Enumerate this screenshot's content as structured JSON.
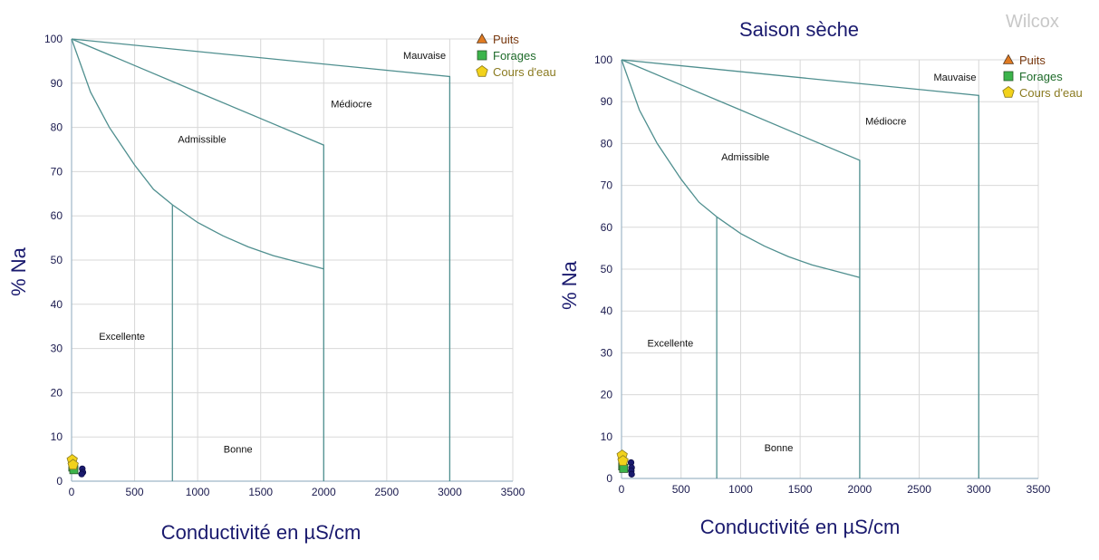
{
  "watermark": "Wilcox",
  "colors": {
    "grid": "#d8d8d8",
    "boundary": "#4f8f8f",
    "axis_text": "#1a1a4e",
    "axis_title": "#1a1a6e",
    "puits": "#e07b22",
    "forages": "#3cb44b",
    "cours": "#f2d21b",
    "legend_puits_text": "#7a3a10",
    "legend_forages_text": "#1e6b2a",
    "legend_cours_text": "#8a7a20",
    "sample_blue": "#1a1a6e"
  },
  "legend": [
    {
      "label": "Puits",
      "icon": "triangle-icon",
      "color_key": "puits"
    },
    {
      "label": "Forages",
      "icon": "square-icon",
      "color_key": "forages"
    },
    {
      "label": "Cours d'eau",
      "icon": "pentagon-icon",
      "color_key": "cours"
    }
  ],
  "chart_data": [
    {
      "type": "scatter",
      "title": "",
      "xlabel": "Conductivité en µS/cm",
      "ylabel": "% Na",
      "xlim": [
        0,
        3500
      ],
      "ylim": [
        0,
        100
      ],
      "x_ticks": [
        0,
        500,
        1000,
        1500,
        2000,
        2500,
        3000,
        3500
      ],
      "y_ticks": [
        0,
        10,
        20,
        30,
        40,
        50,
        60,
        70,
        80,
        90,
        100
      ],
      "grid": true,
      "legend_position": "top-right",
      "zones": [
        {
          "label": "Excellente",
          "x": 400,
          "y": 32
        },
        {
          "label": "Bonne",
          "x": 1320,
          "y": 6.5
        },
        {
          "label": "Admissible",
          "x": 1035,
          "y": 76.5
        },
        {
          "label": "Médiocre",
          "x": 2220,
          "y": 84.5
        },
        {
          "label": "Mauvaise",
          "x": 2800,
          "y": 95.5
        }
      ],
      "series": [
        {
          "name": "Puits",
          "points": [
            [
              85,
              2.8
            ],
            [
              90,
              2.0
            ],
            [
              80,
              1.6
            ]
          ]
        },
        {
          "name": "Forages",
          "points": [
            [
              10,
              3.2
            ],
            [
              18,
              2.6
            ]
          ]
        },
        {
          "name": "Cours d'eau",
          "points": [
            [
              5,
              4.8
            ],
            [
              12,
              3.7
            ]
          ]
        }
      ]
    },
    {
      "type": "scatter",
      "title": "Saison sèche",
      "xlabel": "Conductivité en µS/cm",
      "ylabel": "% Na",
      "xlim": [
        0,
        3500
      ],
      "ylim": [
        0,
        100
      ],
      "x_ticks": [
        0,
        500,
        1000,
        1500,
        2000,
        2500,
        3000,
        3500
      ],
      "y_ticks": [
        0,
        10,
        20,
        30,
        40,
        50,
        60,
        70,
        80,
        90,
        100
      ],
      "grid": true,
      "legend_position": "top-right",
      "zones": [
        {
          "label": "Excellente",
          "x": 410,
          "y": 31.5
        },
        {
          "label": "Bonne",
          "x": 1320,
          "y": 6.5
        },
        {
          "label": "Admissible",
          "x": 1040,
          "y": 76
        },
        {
          "label": "Médiocre",
          "x": 2220,
          "y": 84.5
        },
        {
          "label": "Mauvaise",
          "x": 2800,
          "y": 95
        }
      ],
      "series": [
        {
          "name": "Puits",
          "points": [
            [
              80,
              3.8
            ],
            [
              85,
              2.6
            ],
            [
              82,
              1.8
            ],
            [
              85,
              1.0
            ]
          ]
        },
        {
          "name": "Forages",
          "points": [
            [
              10,
              3.0
            ],
            [
              18,
              2.4
            ]
          ]
        },
        {
          "name": "Cours d'eau",
          "points": [
            [
              5,
              5.5
            ],
            [
              12,
              4.2
            ]
          ]
        }
      ]
    }
  ]
}
